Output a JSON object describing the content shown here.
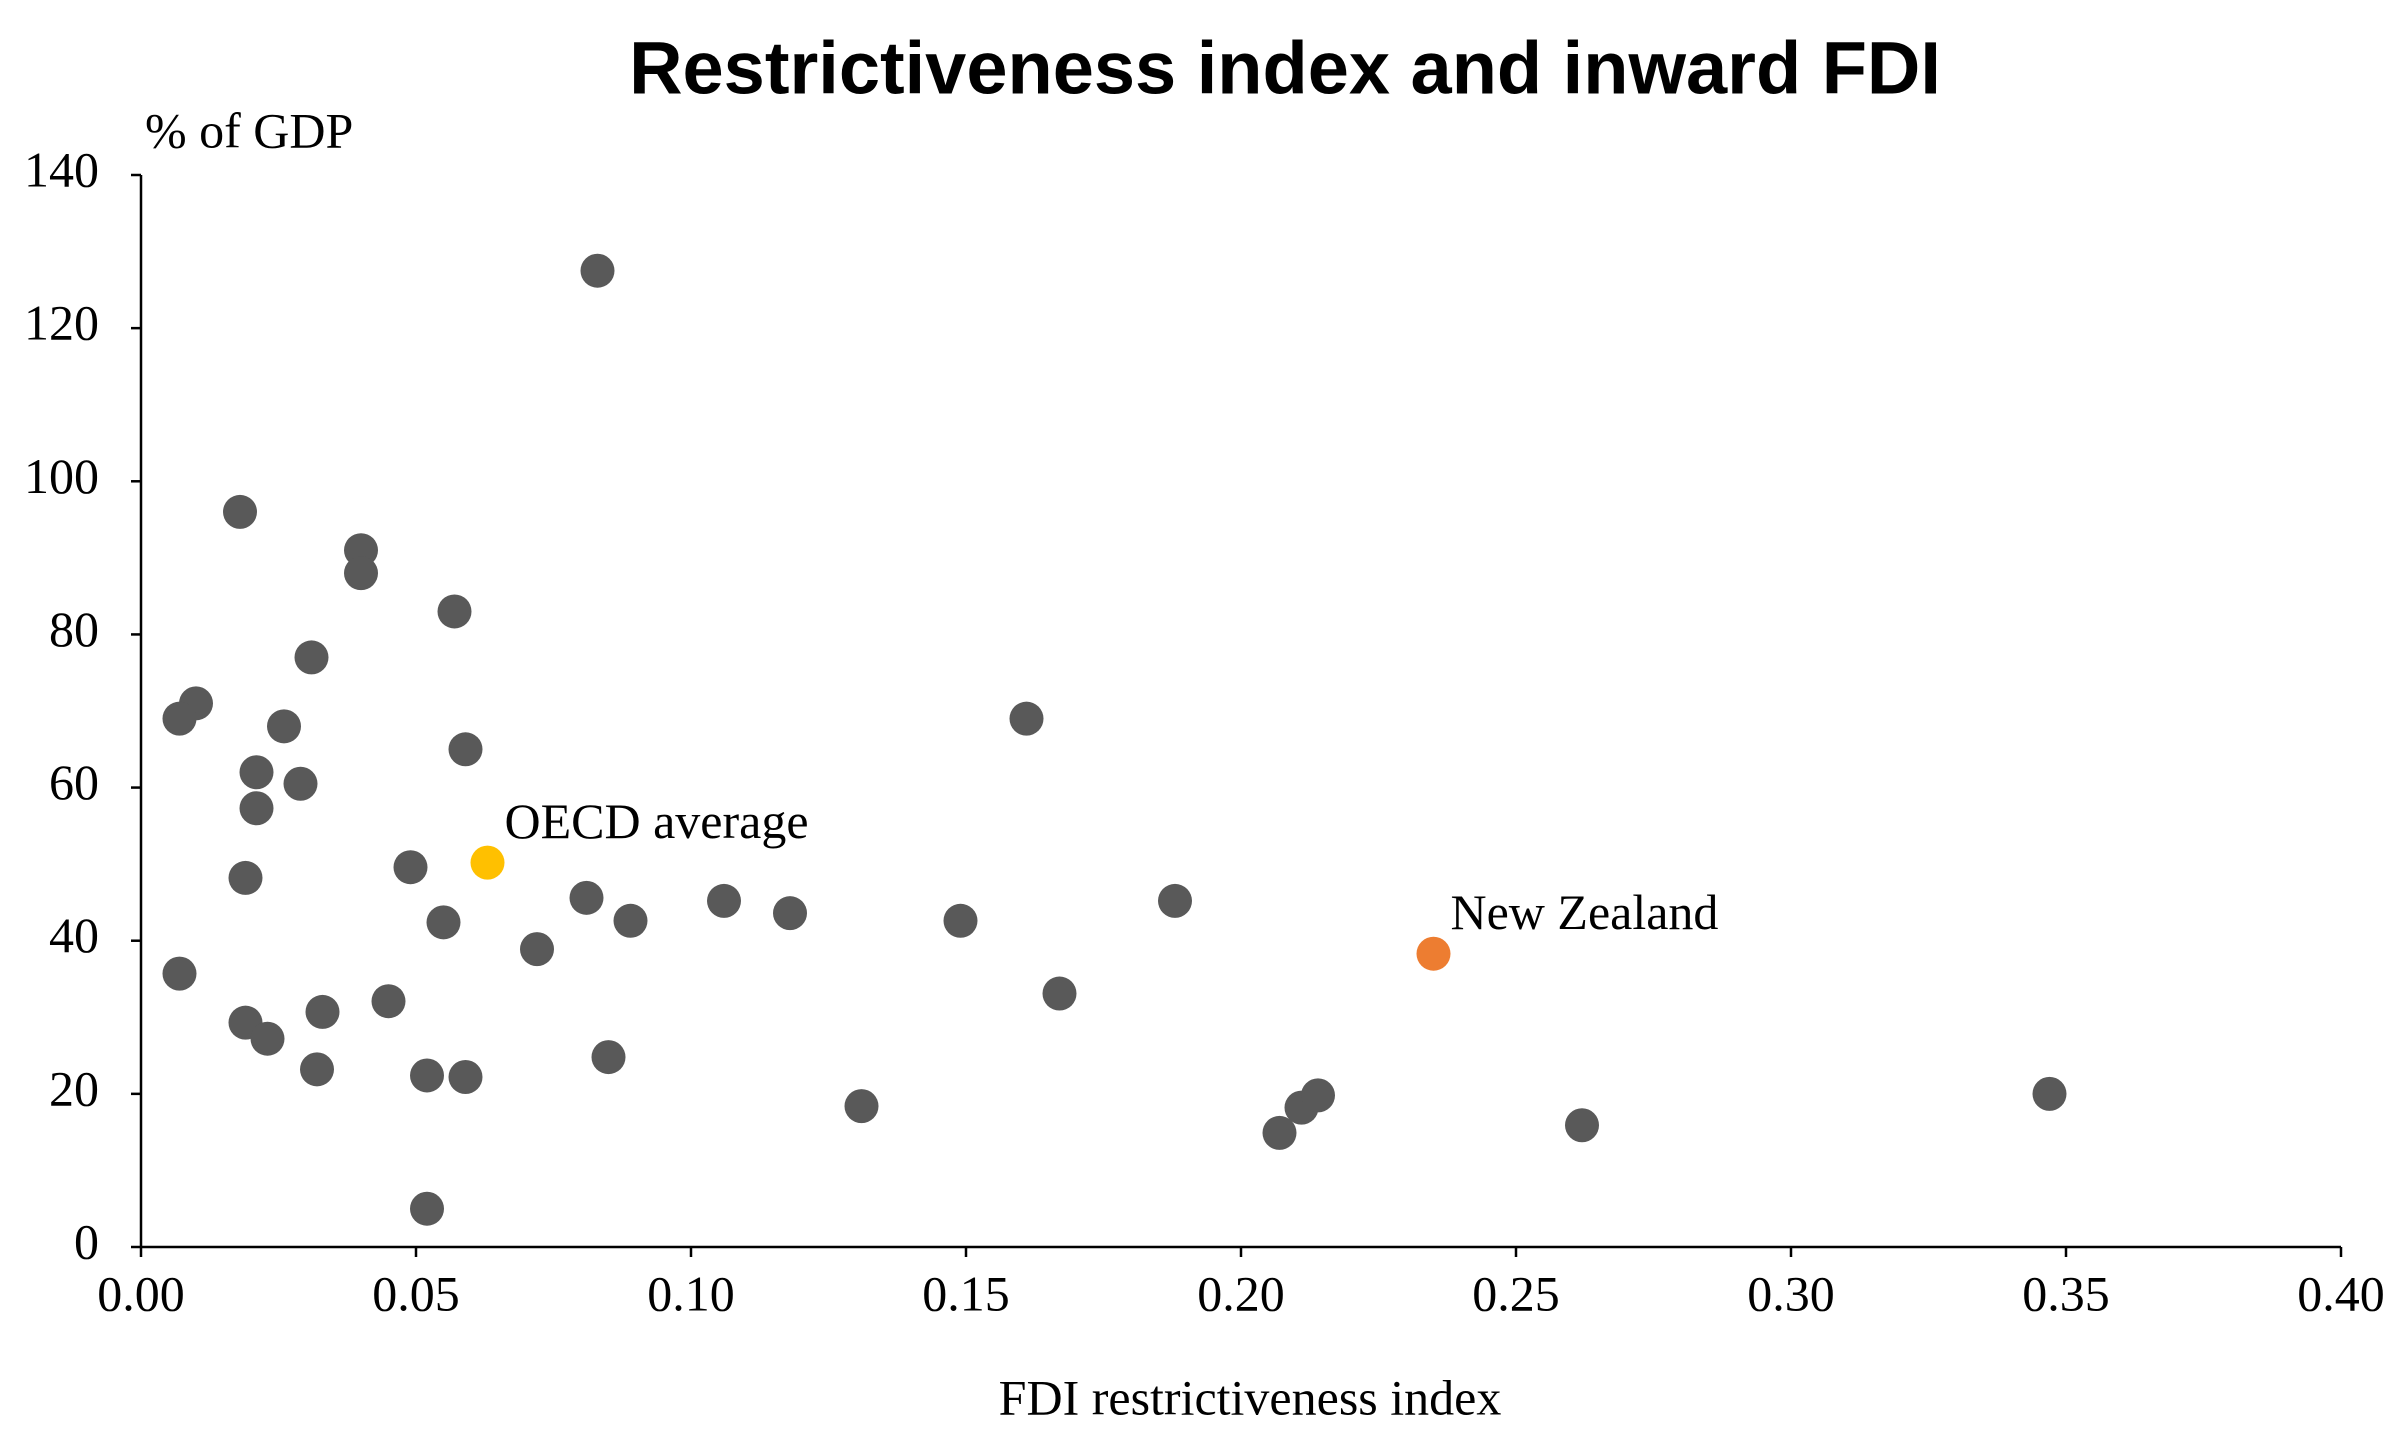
{
  "chart_data": {
    "type": "scatter",
    "title": "Restrictiveness index and inward FDI",
    "xlabel": "FDI restrictiveness index",
    "ylabel": "% of GDP",
    "color": "#595959",
    "x": [
      0.083,
      0.018,
      0.04,
      0.04,
      0.057,
      0.031,
      0.01,
      0.007,
      0.026,
      0.161,
      0.059,
      0.021,
      0.029,
      0.021,
      0.049,
      0.019,
      0.081,
      0.106,
      0.188,
      0.118,
      0.055,
      0.089,
      0.149,
      0.072,
      0.007,
      0.167,
      0.045,
      0.033,
      0.019,
      0.023,
      0.085,
      0.032,
      0.052,
      0.059,
      0.131,
      0.211,
      0.214,
      0.207,
      0.262,
      0.347,
      0.052
    ],
    "values": [
      127.5,
      96,
      91,
      88,
      83,
      77,
      71,
      69,
      68,
      69,
      65,
      62,
      60.5,
      57.3,
      49.6,
      48.2,
      45.6,
      45.2,
      45.2,
      43.6,
      42.4,
      42.6,
      42.6,
      38.9,
      35.7,
      33.1,
      32.1,
      30.7,
      29.3,
      27.2,
      24.8,
      23.2,
      22.4,
      22.2,
      18.4,
      18.2,
      19.8,
      14.9,
      15.9,
      20,
      5
    ],
    "annotations": [
      {
        "label": "OECD average",
        "x": 0.063,
        "y": 50.2,
        "color": "#ffc000"
      },
      {
        "label": "New Zealand",
        "x": 0.235,
        "y": 38.3,
        "color": "#ed7d31"
      }
    ],
    "xlim": [
      0,
      0.4
    ],
    "ylim": [
      0,
      140
    ],
    "xticks": [
      {
        "value": 0,
        "label": "0.00"
      },
      {
        "value": 0.05,
        "label": "0.05"
      },
      {
        "value": 0.1,
        "label": "0.10"
      },
      {
        "value": 0.15,
        "label": "0.15"
      },
      {
        "value": 0.2,
        "label": "0.20"
      },
      {
        "value": 0.25,
        "label": "0.25"
      },
      {
        "value": 0.3,
        "label": "0.30"
      },
      {
        "value": 0.35,
        "label": "0.35"
      },
      {
        "value": 0.4,
        "label": "0.40"
      }
    ],
    "yticks": [
      0,
      20,
      40,
      60,
      80,
      100,
      120,
      140
    ]
  }
}
